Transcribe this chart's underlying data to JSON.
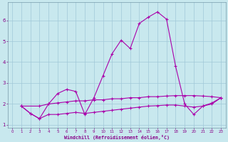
{
  "background_color": "#c8e8ee",
  "grid_color": "#a0c8d8",
  "line_color": "#aa00aa",
  "xlabel": "Windchill (Refroidissement éolien,°C)",
  "xlabel_color": "#880088",
  "ylabel_color": "#880088",
  "tick_color": "#880088",
  "ylim": [
    0.85,
    6.85
  ],
  "xlim": [
    -0.5,
    23.5
  ],
  "yticks": [
    1,
    2,
    3,
    4,
    5,
    6
  ],
  "xticks": [
    0,
    1,
    2,
    3,
    4,
    5,
    6,
    7,
    8,
    9,
    10,
    11,
    12,
    13,
    14,
    15,
    16,
    17,
    18,
    19,
    20,
    21,
    22,
    23
  ],
  "line1_x": [
    1,
    2,
    3,
    4,
    5,
    6,
    7,
    8,
    9,
    10,
    11,
    12,
    13,
    14,
    15,
    16,
    17,
    18,
    19,
    20,
    21,
    22,
    23
  ],
  "line1_y": [
    1.9,
    1.55,
    1.3,
    2.0,
    2.5,
    2.7,
    2.6,
    1.5,
    2.3,
    3.35,
    4.4,
    5.05,
    4.65,
    5.85,
    6.15,
    6.4,
    6.05,
    3.8,
    2.0,
    1.5,
    1.9,
    2.05,
    2.3
  ],
  "line2_x": [
    1,
    3,
    4,
    5,
    6,
    7,
    8,
    9,
    10,
    11,
    12,
    13,
    14,
    15,
    16,
    17,
    18,
    19,
    20,
    21,
    22,
    23
  ],
  "line2_y": [
    1.9,
    1.9,
    2.0,
    2.05,
    2.1,
    2.15,
    2.15,
    2.2,
    2.2,
    2.25,
    2.25,
    2.3,
    2.3,
    2.35,
    2.35,
    2.38,
    2.4,
    2.4,
    2.4,
    2.38,
    2.35,
    2.3
  ],
  "line3_x": [
    1,
    2,
    3,
    4,
    5,
    6,
    7,
    8,
    9,
    10,
    11,
    12,
    13,
    14,
    15,
    16,
    17,
    18,
    19,
    20,
    21,
    22,
    23
  ],
  "line3_y": [
    1.9,
    1.55,
    1.3,
    1.5,
    1.5,
    1.55,
    1.6,
    1.55,
    1.6,
    1.65,
    1.7,
    1.75,
    1.8,
    1.85,
    1.9,
    1.92,
    1.95,
    1.95,
    1.9,
    1.85,
    1.9,
    2.0,
    2.3
  ],
  "figsize": [
    3.2,
    2.0
  ],
  "dpi": 100
}
